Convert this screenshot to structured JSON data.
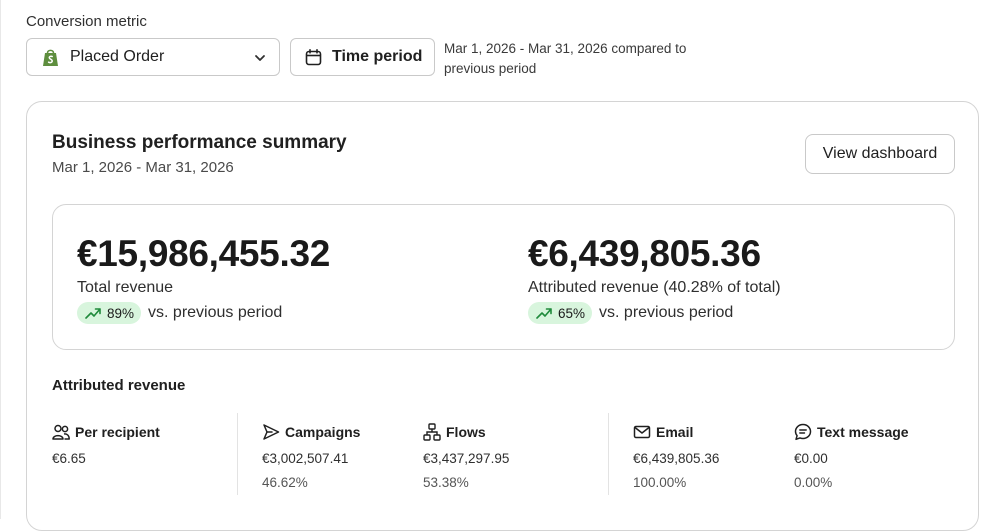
{
  "conversion_metric": {
    "label": "Conversion metric",
    "selected": "Placed Order",
    "icon": "shopify-icon"
  },
  "time_period": {
    "button_label": "Time period",
    "description": "Mar 1, 2026 - Mar 31, 2026 compared to previous period"
  },
  "summary": {
    "title": "Business performance summary",
    "date_range": "Mar 1, 2026 - Mar 31, 2026",
    "view_button": "View dashboard",
    "total_revenue": {
      "value": "€15,986,455.32",
      "label": "Total revenue",
      "change": "89%",
      "vs": "vs. previous period"
    },
    "attributed_revenue": {
      "value": "€6,439,805.36",
      "label": "Attributed revenue (40.28% of total)",
      "change": "65%",
      "vs": "vs. previous period"
    }
  },
  "attributed": {
    "heading": "Attributed revenue",
    "per_recipient": {
      "label": "Per recipient",
      "value": "€6.65"
    },
    "campaigns": {
      "label": "Campaigns",
      "value": "€3,002,507.41",
      "pct": "46.62%"
    },
    "flows": {
      "label": "Flows",
      "value": "€3,437,297.95",
      "pct": "53.38%"
    },
    "email": {
      "label": "Email",
      "value": "€6,439,805.36",
      "pct": "100.00%"
    },
    "text_message": {
      "label": "Text message",
      "value": "€0.00",
      "pct": "0.00%"
    }
  },
  "colors": {
    "positive_pill": "#d8f5dd",
    "trend_green": "#1f8a3b",
    "shopify_green": "#5e8e3e",
    "border": "#d4d4d4"
  }
}
